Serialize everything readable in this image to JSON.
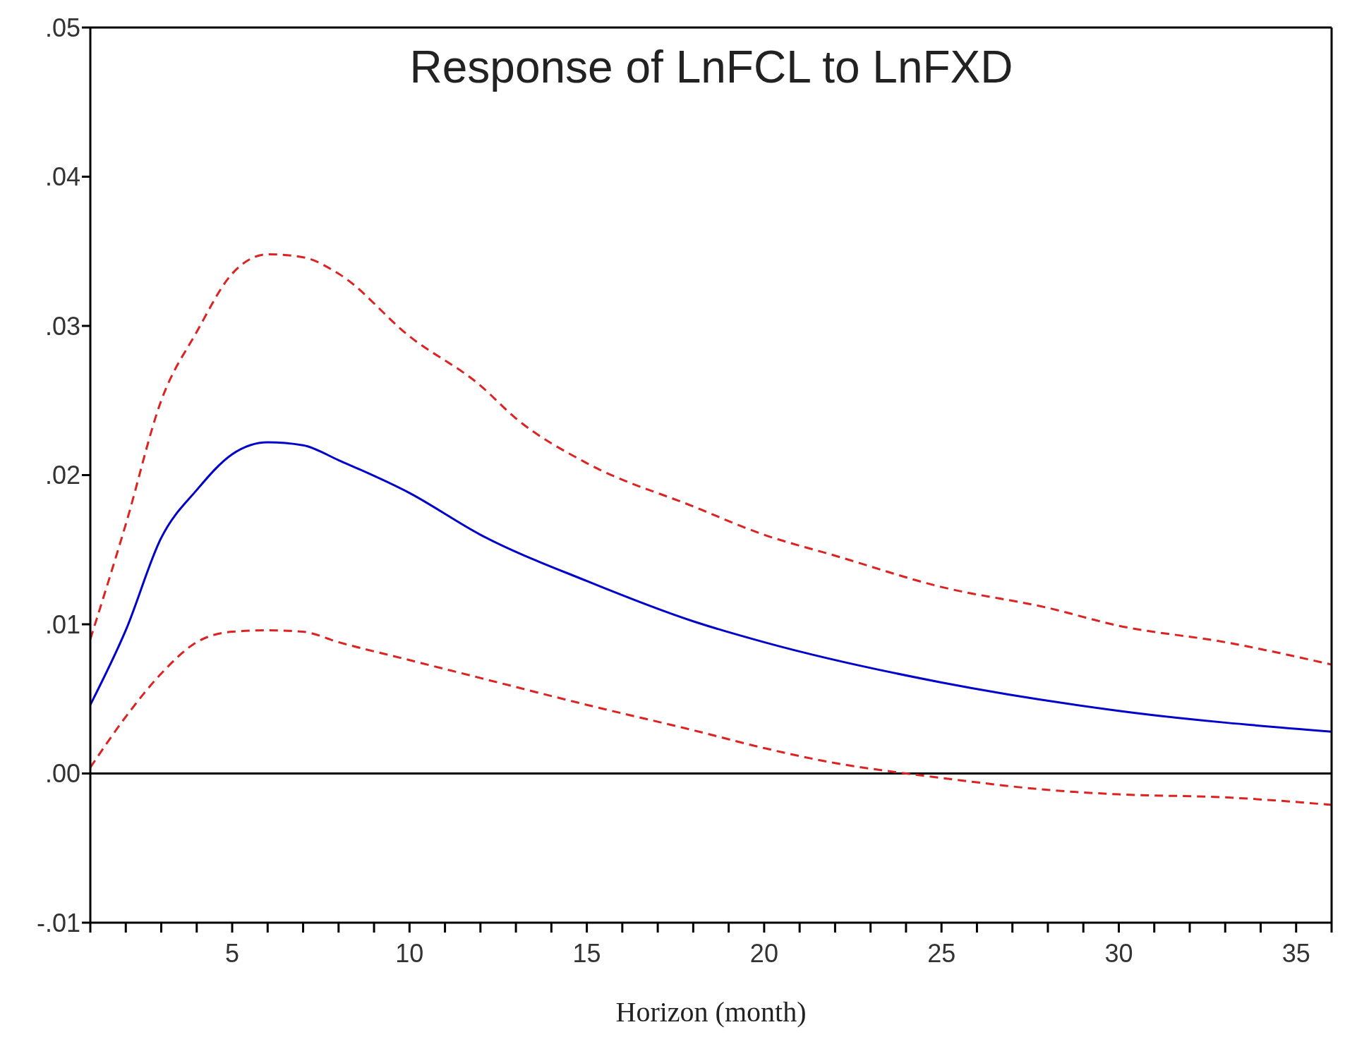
{
  "chart_data": {
    "type": "line",
    "title": "Response of LnFCL to LnFXD",
    "xlabel": "Horizon (month)",
    "xlim": [
      1,
      36
    ],
    "xticks": [
      {
        "value": 1,
        "label": null
      },
      {
        "value": 2,
        "label": null
      },
      {
        "value": 3,
        "label": null
      },
      {
        "value": 4,
        "label": null
      },
      5,
      {
        "value": 6,
        "label": null
      },
      {
        "value": 7,
        "label": null
      },
      {
        "value": 8,
        "label": null
      },
      {
        "value": 9,
        "label": null
      },
      10,
      {
        "value": 11,
        "label": null
      },
      {
        "value": 12,
        "label": null
      },
      {
        "value": 13,
        "label": null
      },
      {
        "value": 14,
        "label": null
      },
      15,
      {
        "value": 16,
        "label": null
      },
      {
        "value": 17,
        "label": null
      },
      {
        "value": 18,
        "label": null
      },
      {
        "value": 19,
        "label": null
      },
      20,
      {
        "value": 21,
        "label": null
      },
      {
        "value": 22,
        "label": null
      },
      {
        "value": 23,
        "label": null
      },
      {
        "value": 24,
        "label": null
      },
      25,
      {
        "value": 26,
        "label": null
      },
      {
        "value": 27,
        "label": null
      },
      {
        "value": 28,
        "label": null
      },
      {
        "value": 29,
        "label": null
      },
      30,
      {
        "value": 31,
        "label": null
      },
      {
        "value": 32,
        "label": null
      },
      {
        "value": 33,
        "label": null
      },
      {
        "value": 34,
        "label": null
      },
      35,
      {
        "value": 36,
        "label": null
      }
    ],
    "ylim": [
      -0.01,
      0.05
    ],
    "yticks": [
      {
        "value": -0.01,
        "label": "-.01"
      },
      {
        "value": 0,
        "label": ".00"
      },
      {
        "value": 0.01,
        "label": ".01"
      },
      {
        "value": 0.02,
        "label": ".02"
      },
      {
        "value": 0.03,
        "label": ".03"
      },
      {
        "value": 0.04,
        "label": ".04"
      },
      {
        "value": 0.05,
        "label": ".05"
      }
    ],
    "marker": "none",
    "ref_lines": [
      {
        "axis": "y",
        "value": 0,
        "color": "#000000"
      }
    ],
    "series": [
      {
        "color": "#0000cc",
        "line_style": "solid",
        "x": [
          1,
          2,
          3,
          4,
          5,
          6,
          7,
          8,
          10,
          12,
          15,
          18,
          20,
          25,
          30,
          36
        ],
        "values": [
          0.0046,
          0.0096,
          0.0158,
          0.019,
          0.0214,
          0.0222,
          0.022,
          0.021,
          0.0188,
          0.016,
          0.0129,
          0.0102,
          0.0088,
          0.0061,
          0.0042,
          0.0028
        ]
      },
      {
        "color": "#dd2222",
        "line_style": "dashed",
        "x": [
          1,
          2,
          3,
          4,
          5,
          6,
          7,
          8,
          10,
          12,
          13,
          15,
          18,
          20,
          22,
          25,
          28,
          30,
          33,
          36
        ],
        "values": [
          0.009,
          0.0167,
          0.025,
          0.0296,
          0.0335,
          0.0348,
          0.0346,
          0.0335,
          0.0293,
          0.026,
          0.0238,
          0.0208,
          0.0179,
          0.016,
          0.0146,
          0.0125,
          0.0111,
          0.0099,
          0.0088,
          0.0073
        ]
      },
      {
        "color": "#dd2222",
        "line_style": "dashed",
        "x": [
          1,
          2,
          3,
          4,
          5,
          6,
          7,
          8,
          10,
          12,
          15,
          18,
          20,
          22,
          24,
          25,
          28,
          30,
          33,
          36
        ],
        "values": [
          0.0004,
          0.0038,
          0.0067,
          0.0088,
          0.0095,
          0.0096,
          0.0095,
          0.0088,
          0.0076,
          0.0064,
          0.0046,
          0.0029,
          0.0017,
          0.0007,
          0,
          -0.0003,
          -0.0011,
          -0.0014,
          -0.0016,
          -0.0021
        ]
      }
    ]
  }
}
